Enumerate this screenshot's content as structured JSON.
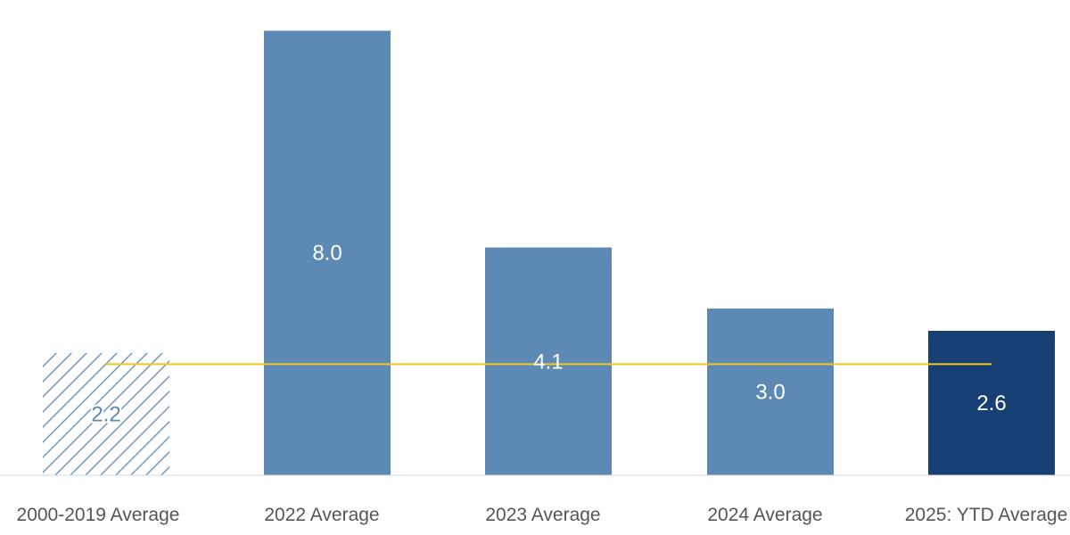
{
  "chart_data": {
    "type": "bar",
    "categories": [
      "2000-2019 Average",
      "2022 Average",
      "2023 Average",
      "2024 Average",
      "2025: YTD Average"
    ],
    "values": [
      2.2,
      8.0,
      4.1,
      3.0,
      2.6
    ],
    "value_labels": [
      "2.2",
      "8.0",
      "4.1",
      "3.0",
      "2.6"
    ],
    "ylim": [
      0,
      8.2
    ],
    "reference_line": {
      "value": 2.0,
      "color": "#f2c81c"
    },
    "bar_styles": [
      "hatched",
      "solid",
      "solid",
      "solid",
      "dark"
    ],
    "colors": {
      "bar": "#5d8ab5",
      "highlight": "#163f73",
      "hatch": "#5d8ab5",
      "axis": "#d9d9d9",
      "label": "#555555"
    },
    "grid": false,
    "legend": "none"
  }
}
